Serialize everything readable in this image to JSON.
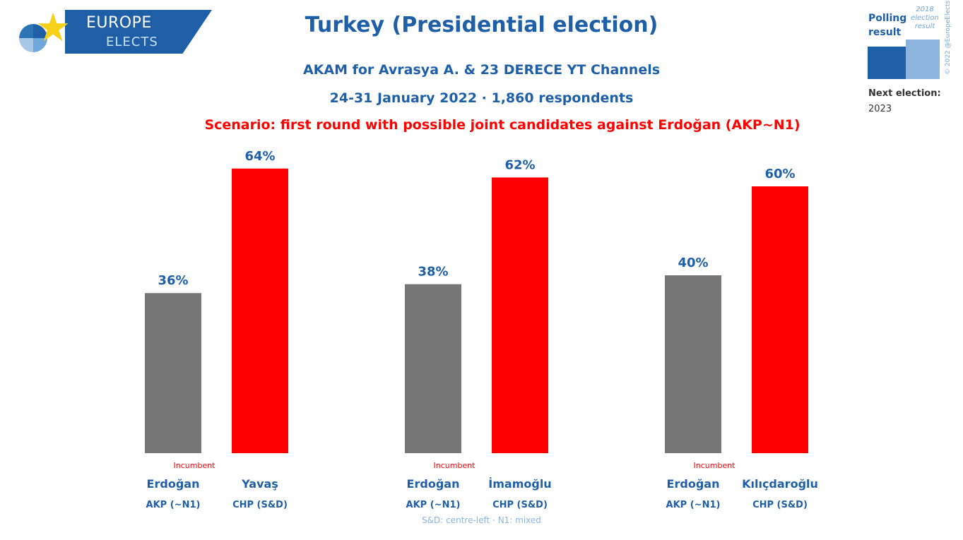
{
  "logo": {
    "line1": "EUROPE",
    "line2": "ELECTS"
  },
  "header": {
    "title": "Turkey (Presidential election)",
    "subtitle": "AKAM for Avrasya A. & 23 DERECE YT Channels",
    "fieldwork": "24-31 January 2022 · 1,860 respondents",
    "scenario": "Scenario: first round with possible joint candidates against Erdoğan (AKP~N1)"
  },
  "legend": {
    "polling_label": "Polling result",
    "election_label": "2018 election result",
    "copyright": "© 2022 @EuropeElects",
    "next_election_label": "Next election:",
    "next_election_year": "2023"
  },
  "footnote": "S&D: centre-left · N1: mixed",
  "colors": {
    "incumbent_bar": "#777777",
    "challenger_bar": "#ff0000",
    "label": "#1f5fa8"
  },
  "chart_data": {
    "type": "bar",
    "ylim": [
      0,
      100
    ],
    "groups": [
      {
        "bars": [
          {
            "candidate": "Erdoğan",
            "party": "AKP (~N1)",
            "value": 36,
            "label": "36%",
            "note": "Incumbent"
          },
          {
            "candidate": "Yavaş",
            "party": "CHP (S&D)",
            "value": 64,
            "label": "64%",
            "note": ""
          }
        ]
      },
      {
        "bars": [
          {
            "candidate": "Erdoğan",
            "party": "AKP (~N1)",
            "value": 38,
            "label": "38%",
            "note": "Incumbent"
          },
          {
            "candidate": "İmamoğlu",
            "party": "CHP (S&D)",
            "value": 62,
            "label": "62%",
            "note": ""
          }
        ]
      },
      {
        "bars": [
          {
            "candidate": "Erdoğan",
            "party": "AKP (~N1)",
            "value": 40,
            "label": "40%",
            "note": "Incumbent"
          },
          {
            "candidate": "Kılıçdaroğlu",
            "party": "CHP (S&D)",
            "value": 60,
            "label": "60%",
            "note": ""
          }
        ]
      }
    ]
  }
}
